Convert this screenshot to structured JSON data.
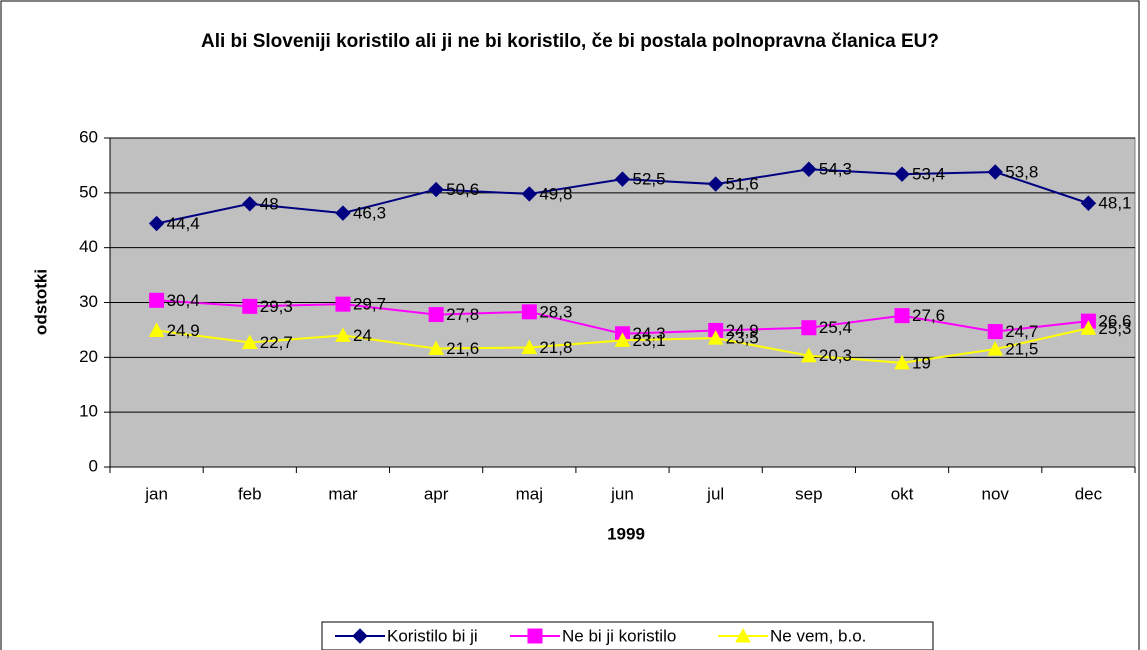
{
  "chart_data": {
    "type": "line",
    "title": "Ali bi Sloveniji koristilo ali ji ne bi koristilo, če bi postala polnopravna članica EU?",
    "xlabel": "1999",
    "ylabel": "odstotki",
    "categories": [
      "jan",
      "feb",
      "mar",
      "apr",
      "maj",
      "jun",
      "jul",
      "sep",
      "okt",
      "nov",
      "dec"
    ],
    "series": [
      {
        "name": "Koristilo bi ji",
        "color": "#000080",
        "marker": "diamond",
        "values": [
          44.4,
          48,
          46.3,
          50.6,
          49.8,
          52.5,
          51.6,
          54.3,
          53.4,
          53.8,
          48.1
        ],
        "value_labels": [
          "44,4",
          "48",
          "46,3",
          "50,6",
          "49,8",
          "52,5",
          "51,6",
          "54,3",
          "53,4",
          "53,8",
          "48,1"
        ]
      },
      {
        "name": "Ne bi ji koristilo",
        "color": "#ff00ff",
        "marker": "square",
        "values": [
          30.4,
          29.3,
          29.7,
          27.8,
          28.3,
          24.3,
          24.9,
          25.4,
          27.6,
          24.7,
          26.6
        ],
        "value_labels": [
          "30,4",
          "29,3",
          "29,7",
          "27,8",
          "28,3",
          "24,3",
          "24,9",
          "25,4",
          "27,6",
          "24,7",
          "26,6"
        ]
      },
      {
        "name": "Ne vem, b.o.",
        "color": "#ffff00",
        "marker": "triangle",
        "values": [
          24.9,
          22.7,
          24,
          21.6,
          21.8,
          23.1,
          23.5,
          20.3,
          19,
          21.5,
          25.3
        ],
        "value_labels": [
          "24,9",
          "22,7",
          "24",
          "21,6",
          "21,8",
          "23,1",
          "23,5",
          "20,3",
          "19",
          "21,5",
          "25,3"
        ]
      }
    ],
    "ylim": [
      0,
      60
    ],
    "yticks": [
      0,
      10,
      20,
      30,
      40,
      50,
      60
    ],
    "grid": true,
    "legend": "bottom"
  }
}
